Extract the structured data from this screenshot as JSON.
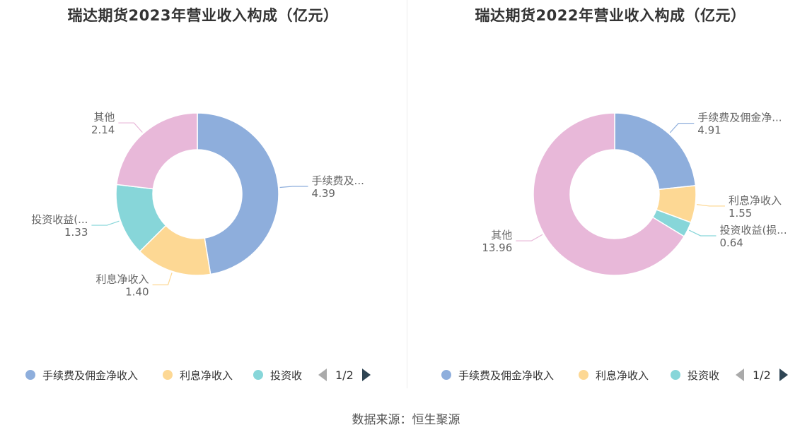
{
  "source": "数据来源：恒生聚源",
  "colors": {
    "手续费及佣金净收入": "#8eaedc",
    "利息净收入": "#fdd894",
    "投资收益(损失)": "#87d6d9",
    "其他": "#e8b8d9"
  },
  "chart_data": [
    {
      "type": "pie",
      "donut": true,
      "title": "瑞达期货2023年营业收入构成（亿元）",
      "slices": [
        {
          "name": "手续费及佣金净收入",
          "label": "手续费及...",
          "value": 4.39,
          "value_text": "4.39"
        },
        {
          "name": "利息净收入",
          "label": "利息净收入",
          "value": 1.4,
          "value_text": "1.40"
        },
        {
          "name": "投资收益(损失)",
          "label": "投资收益(...",
          "value": 1.33,
          "value_text": "1.33"
        },
        {
          "name": "其他",
          "label": "其他",
          "value": 2.14,
          "value_text": "2.14"
        }
      ],
      "legend": {
        "items": [
          "手续费及佣金净收入",
          "利息净收入",
          "投资收"
        ],
        "page": "1/2"
      }
    },
    {
      "type": "pie",
      "donut": true,
      "title": "瑞达期货2022年营业收入构成（亿元）",
      "slices": [
        {
          "name": "手续费及佣金净收入",
          "label": "手续费及佣金净...",
          "value": 4.91,
          "value_text": "4.91"
        },
        {
          "name": "利息净收入",
          "label": "利息净收入",
          "value": 1.55,
          "value_text": "1.55"
        },
        {
          "name": "投资收益(损失)",
          "label": "投资收益(损...",
          "value": 0.64,
          "value_text": "0.64"
        },
        {
          "name": "其他",
          "label": "其他",
          "value": 13.96,
          "value_text": "13.96"
        }
      ],
      "legend": {
        "items": [
          "手续费及佣金净收入",
          "利息净收入",
          "投资收"
        ],
        "page": "1/2"
      }
    }
  ]
}
